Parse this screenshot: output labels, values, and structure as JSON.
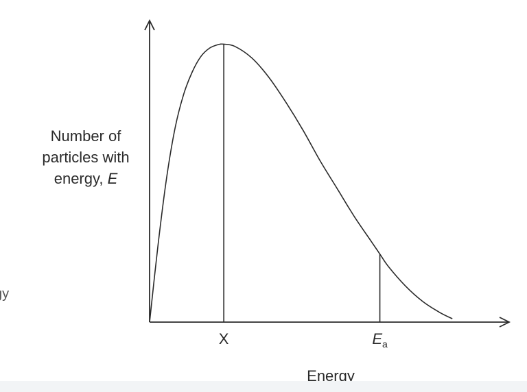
{
  "chart_data": {
    "type": "line",
    "title": "",
    "xlabel": "Energy",
    "ylabel": {
      "line1": "Number of",
      "line2": "particles with",
      "line3_text": "energy, ",
      "line3_symbol": "E"
    },
    "x_ticks": [
      {
        "label": "X",
        "subscript": ""
      },
      {
        "label": "E",
        "subscript": "a"
      }
    ],
    "series": [
      {
        "points": [
          [
            0,
            0
          ],
          [
            0.1,
            0.28
          ],
          [
            0.2,
            0.52
          ],
          [
            0.3,
            0.7
          ],
          [
            0.4,
            0.82
          ],
          [
            0.5,
            0.9
          ],
          [
            0.6,
            0.955
          ],
          [
            0.7,
            0.985
          ],
          [
            0.8,
            0.998
          ],
          [
            0.87,
            1.0
          ],
          [
            1.0,
            0.992
          ],
          [
            1.2,
            0.95
          ],
          [
            1.4,
            0.88
          ],
          [
            1.6,
            0.79
          ],
          [
            1.8,
            0.69
          ],
          [
            2.0,
            0.58
          ],
          [
            2.2,
            0.48
          ],
          [
            2.4,
            0.38
          ],
          [
            2.6,
            0.29
          ],
          [
            2.7,
            0.245
          ],
          [
            2.8,
            0.2
          ],
          [
            3.0,
            0.13
          ],
          [
            3.2,
            0.075
          ],
          [
            3.4,
            0.035
          ],
          [
            3.55,
            0.012
          ]
        ]
      }
    ],
    "markers": [
      {
        "name": "X",
        "x": 0.87
      },
      {
        "name": "Ea",
        "x": 2.7
      }
    ],
    "xlim": [
      0,
      4.2
    ],
    "ylim": [
      0,
      1.08
    ],
    "grid": false,
    "axis_arrows": true,
    "line_color": "#2a2a2a",
    "background": "#ffffff"
  },
  "cropped_left_text": "gy"
}
